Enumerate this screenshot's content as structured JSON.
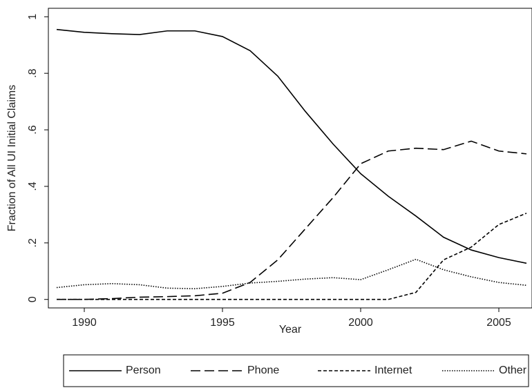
{
  "chart_data": {
    "type": "line",
    "x_label": "Year",
    "y_label": "Fraction of All UI Initial Claims",
    "x": [
      1989,
      1990,
      1991,
      1992,
      1993,
      1994,
      1995,
      1996,
      1997,
      1998,
      1999,
      2000,
      2001,
      2002,
      2003,
      2004,
      2005,
      2006
    ],
    "series": [
      {
        "name": "Person",
        "color": "#000000",
        "dash": "solid",
        "values": [
          0.955,
          0.945,
          0.94,
          0.937,
          0.95,
          0.95,
          0.93,
          0.88,
          0.79,
          0.665,
          0.55,
          0.445,
          0.365,
          0.295,
          0.22,
          0.175,
          0.148,
          0.128
        ]
      },
      {
        "name": "Phone",
        "color": "#000000",
        "dash": "long",
        "values": [
          0,
          0,
          0.003,
          0.008,
          0.01,
          0.013,
          0.022,
          0.06,
          0.14,
          0.25,
          0.36,
          0.48,
          0.525,
          0.535,
          0.53,
          0.56,
          0.525,
          0.515
        ]
      },
      {
        "name": "Internet",
        "color": "#000000",
        "dash": "short",
        "values": [
          0,
          0,
          0,
          0,
          0,
          0,
          0,
          0,
          0,
          0,
          0,
          0,
          0,
          0.025,
          0.14,
          0.185,
          0.265,
          0.305
        ]
      },
      {
        "name": "Other",
        "color": "#000000",
        "dash": "dot",
        "values": [
          0.042,
          0.052,
          0.056,
          0.052,
          0.04,
          0.038,
          0.046,
          0.058,
          0.064,
          0.072,
          0.077,
          0.07,
          0.105,
          0.142,
          0.105,
          0.08,
          0.06,
          0.05
        ]
      }
    ],
    "xlim": [
      1988.7,
      2006.2
    ],
    "xticks": [
      1990,
      1995,
      2000,
      2005
    ],
    "ylim": [
      -0.03,
      1.03
    ],
    "yticks": [
      0,
      {
        "value": 0.2,
        "label": ".2"
      },
      {
        "value": 0.4,
        "label": ".4"
      },
      {
        "value": 0.6,
        "label": ".6"
      },
      {
        "value": 0.8,
        "label": ".8"
      },
      1
    ],
    "grid": false,
    "legend": "bottom"
  }
}
